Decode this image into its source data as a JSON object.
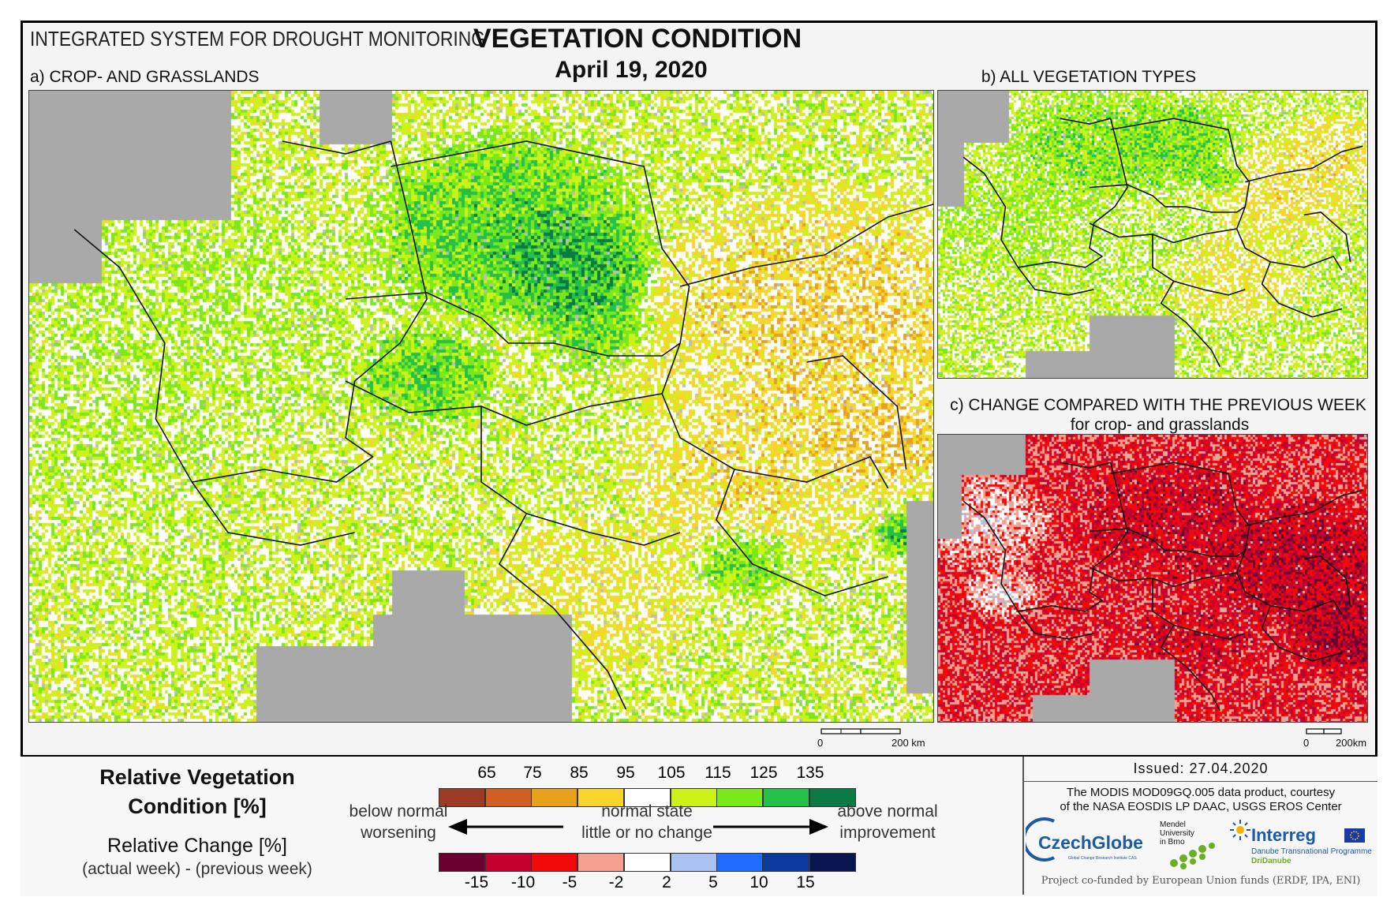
{
  "header": {
    "system_title": "INTEGRATED SYSTEM FOR DROUGHT MONITORING",
    "main_title": "VEGETATION CONDITION",
    "date": "April 19, 2020"
  },
  "panels": {
    "a": {
      "title": "a) CROP- AND GRASSLANDS",
      "scale_zero": "0",
      "scale_label": "200 km"
    },
    "b": {
      "title": "b) ALL VEGETATION TYPES"
    },
    "c": {
      "title": "c) CHANGE COMPARED WITH THE PREVIOUS WEEK",
      "subtitle": "for crop- and grasslands",
      "scale_zero": "0",
      "scale_label": "200km"
    }
  },
  "legend": {
    "rvc_title_line1": "Relative Vegetation",
    "rvc_title_line2": "Condition [%]",
    "rc_title": "Relative Change [%]",
    "rc_subtitle": "(actual week) - (previous week)",
    "left_line1": "below normal",
    "left_line2": "worsening",
    "center_line1": "normal state",
    "center_line2": "little or no change",
    "right_line1": "above normal",
    "right_line2": "improvement",
    "rvc_ticks": [
      "65",
      "75",
      "85",
      "95",
      "105",
      "115",
      "125",
      "135"
    ],
    "rc_ticks": [
      "-15",
      "-10",
      "-5",
      "-2",
      "2",
      "5",
      "10",
      "15"
    ],
    "rvc_colors": [
      "#9b3b24",
      "#cf5f22",
      "#e8a11c",
      "#f8d42c",
      "#ffffff",
      "#ccf21a",
      "#7ae81a",
      "#25c04a",
      "#0b7a45"
    ],
    "rc_colors": [
      "#6b0030",
      "#c4002e",
      "#f20a0a",
      "#f4a090",
      "#ffffff",
      "#a9c2f2",
      "#1f6cff",
      "#0a3a9e",
      "#0a1450"
    ]
  },
  "info": {
    "issued": "Issued: 27.04.2020",
    "courtesy_line1": "The MODIS MOD09GQ.005 data product, courtesy",
    "courtesy_line2": "of the NASA EOSDIS LP DAAC, USGS EROS Center",
    "funding": "Project co-funded by European Union funds (ERDF, IPA, ENI)"
  },
  "logos": {
    "czechglobe": "CzechGlobe",
    "czechglobe_sub": "Global Change Research Institute CAS",
    "mendel_line1": "Mendel",
    "mendel_line2": "University",
    "mendel_line3": "in Brno",
    "interreg": "Interreg",
    "interreg_sub1": "Danube Transnational Programme",
    "interreg_sub2": "DriDanube"
  }
}
